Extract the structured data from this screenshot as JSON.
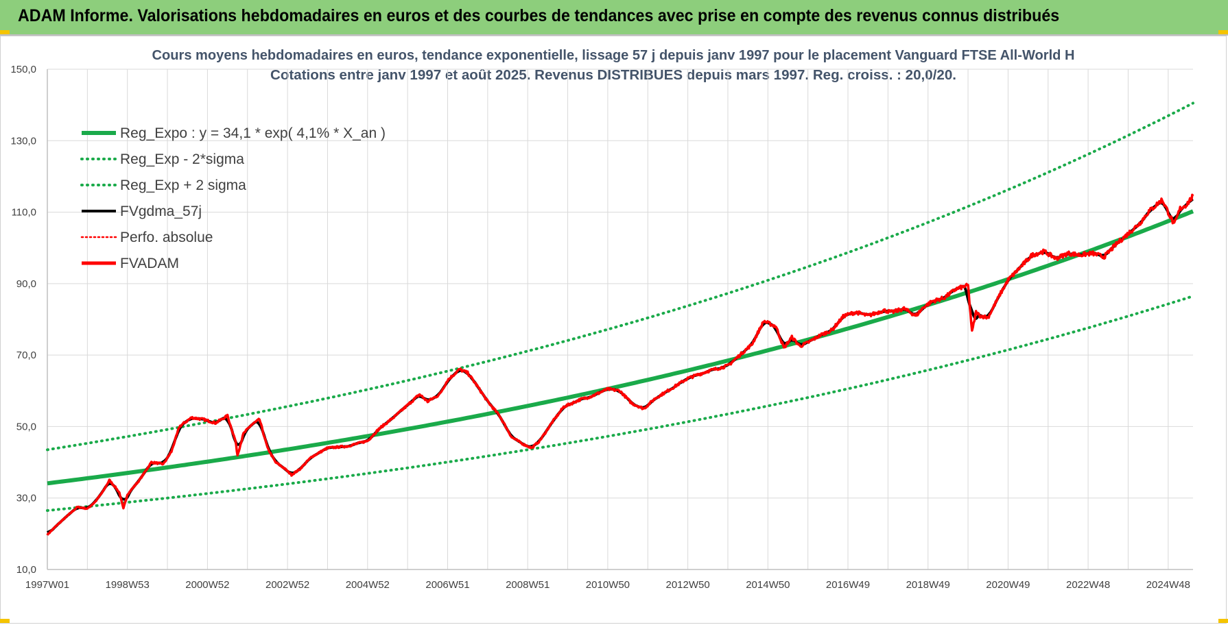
{
  "banner": {
    "title": "ADAM Informe. Valorisations hebdomadaires en euros et des courbes de tendances avec prise en compte des revenus connus distribués"
  },
  "chart_data": {
    "type": "line",
    "title": "Cours moyens hebdomadaires en euros, tendance exponentielle, lissage 57 j depuis janv 1997 pour le placement Vanguard FTSE All-World H",
    "subtitle": "Cotations entre janv 1997 et août 2025. Revenus DISTRIBUES depuis mars 1997. Reg. croiss. : 20,0/20.",
    "xlabel": "",
    "ylabel": "",
    "ylim": [
      10,
      150
    ],
    "xlim": [
      1997.0,
      2025.62
    ],
    "y_ticks": [
      "10,0",
      "30,0",
      "50,0",
      "70,0",
      "90,0",
      "110,0",
      "130,0",
      "150,0"
    ],
    "x_tick_labels": [
      "1997W01",
      "1998W53",
      "2000W52",
      "2002W52",
      "2004W52",
      "2006W51",
      "2008W51",
      "2010W50",
      "2012W50",
      "2014W50",
      "2016W49",
      "2018W49",
      "2020W49",
      "2022W48",
      "2024W48"
    ],
    "x_tick_positions": [
      1997.0,
      1999.0,
      2001.0,
      2003.0,
      2005.0,
      2007.0,
      2009.0,
      2011.0,
      2013.0,
      2015.0,
      2017.0,
      2019.0,
      2021.0,
      2023.0,
      2025.0
    ],
    "grid": true,
    "legend_position": "top-left",
    "colors": {
      "trend": "#1aaa4a",
      "bands": "#1aaa4a",
      "moving_average": "#000000",
      "price": "#ff0000",
      "perf": "#ff0000",
      "grid": "#d9d9d9",
      "axis_text": "#404040",
      "title_text": "#44546a"
    },
    "series": [
      {
        "name": "Reg_Expo : y = 34,1 * exp( 4,1% *  X_an )",
        "kind": "exp_trend",
        "style": "solid-thick",
        "a": 34.1,
        "rate": 0.041,
        "x0": 1997.0
      },
      {
        "name": "Reg_Exp - 2*sigma",
        "kind": "exp_band_low",
        "style": "dotted",
        "values_at": {
          "1997.0": 26.5,
          "2025.62": 86.5
        }
      },
      {
        "name": "Reg_Exp + 2 sigma",
        "kind": "exp_band_high",
        "style": "dotted",
        "values_at": {
          "1997.0": 43.5,
          "2025.62": 140.5
        }
      },
      {
        "name": "FVgdma_57j",
        "kind": "moving_average",
        "style": "solid"
      },
      {
        "name": "Perfo. absolue",
        "kind": "perf",
        "style": "dotted-red"
      },
      {
        "name": "FVADAM",
        "kind": "price",
        "style": "solid-thick",
        "x": [
          1997.0,
          1997.25,
          1997.5,
          1997.75,
          1998.0,
          1998.2,
          1998.4,
          1998.55,
          1998.7,
          1998.8,
          1998.9,
          1999.0,
          1999.3,
          1999.6,
          1999.9,
          2000.1,
          2000.3,
          2000.6,
          2000.9,
          2001.2,
          2001.5,
          2001.7,
          2001.75,
          2001.9,
          2002.1,
          2002.3,
          2002.5,
          2002.7,
          2002.9,
          2003.1,
          2003.3,
          2003.6,
          2004.0,
          2004.5,
          2005.0,
          2005.3,
          2005.7,
          2006.0,
          2006.3,
          2006.5,
          2006.8,
          2007.0,
          2007.3,
          2007.5,
          2007.7,
          2008.0,
          2008.3,
          2008.6,
          2008.9,
          2009.1,
          2009.3,
          2009.6,
          2009.9,
          2010.3,
          2010.6,
          2011.0,
          2011.3,
          2011.6,
          2011.9,
          2012.2,
          2012.5,
          2013.0,
          2013.5,
          2014.0,
          2014.3,
          2014.6,
          2014.9,
          2015.2,
          2015.4,
          2015.6,
          2015.8,
          2016.0,
          2016.3,
          2016.6,
          2016.9,
          2017.2,
          2017.5,
          2017.9,
          2018.1,
          2018.4,
          2018.7,
          2018.9,
          2019.1,
          2019.4,
          2019.7,
          2020.0,
          2020.1,
          2020.2,
          2020.3,
          2020.5,
          2020.8,
          2021.0,
          2021.3,
          2021.6,
          2021.9,
          2022.2,
          2022.5,
          2022.8,
          2023.1,
          2023.4,
          2023.7,
          2024.0,
          2024.3,
          2024.5,
          2024.7,
          2024.85,
          2025.0,
          2025.15,
          2025.3,
          2025.45,
          2025.62
        ],
        "values": [
          19.7,
          22.5,
          25.0,
          27.5,
          27.0,
          29.0,
          32.0,
          35.0,
          33.0,
          31.5,
          27.0,
          31.0,
          35.0,
          40.0,
          39.5,
          43.0,
          50.0,
          52.5,
          52.0,
          51.0,
          53.0,
          46.0,
          42.0,
          48.0,
          50.5,
          52.0,
          44.0,
          40.0,
          38.5,
          36.5,
          38.0,
          41.5,
          44.0,
          44.5,
          46.0,
          49.5,
          53.0,
          56.0,
          59.0,
          57.0,
          59.0,
          63.0,
          66.0,
          65.0,
          62.0,
          57.0,
          53.0,
          47.0,
          45.0,
          44.0,
          46.0,
          51.0,
          55.5,
          57.5,
          58.5,
          60.5,
          60.0,
          56.5,
          55.0,
          58.0,
          60.0,
          63.5,
          65.5,
          67.0,
          70.0,
          73.0,
          79.5,
          78.0,
          72.0,
          75.0,
          72.5,
          73.5,
          75.5,
          77.0,
          81.0,
          82.0,
          81.0,
          82.5,
          82.0,
          83.0,
          81.0,
          83.5,
          85.0,
          86.0,
          88.5,
          89.5,
          76.5,
          82.0,
          81.0,
          80.5,
          87.0,
          91.0,
          94.5,
          98.0,
          99.0,
          97.0,
          98.5,
          98.0,
          98.5,
          97.5,
          101.0,
          104.0,
          107.0,
          110.0,
          112.0,
          113.5,
          110.0,
          106.5,
          111.0,
          112.0,
          114.5
        ]
      }
    ]
  }
}
